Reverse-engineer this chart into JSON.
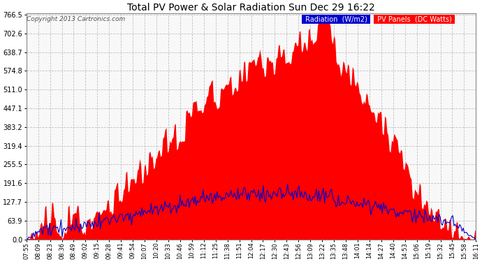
{
  "title": "Total PV Power & Solar Radiation Sun Dec 29 16:22",
  "copyright": "Copyright 2013 Cartronics.com",
  "bg_color": "#ffffff",
  "plot_bg_color": "#f8f8f8",
  "grid_color": "#bbbbbb",
  "pv_color": "#ff0000",
  "rad_color": "#0000cc",
  "yticks": [
    0.0,
    63.9,
    127.7,
    191.6,
    255.5,
    319.4,
    383.2,
    447.1,
    511.0,
    574.8,
    638.7,
    702.6,
    766.5
  ],
  "ymax": 766.5,
  "legend_rad_bg": "#0000cc",
  "legend_pv_bg": "#ff0000",
  "legend_rad_text": "Radiation  (W/m2)",
  "legend_pv_text": "PV Panels  (DC Watts)",
  "x_labels": [
    "07:55",
    "08:09",
    "08:23",
    "08:36",
    "08:49",
    "09:02",
    "09:15",
    "09:28",
    "09:41",
    "09:54",
    "10:07",
    "10:20",
    "10:33",
    "10:46",
    "10:59",
    "11:12",
    "11:25",
    "11:38",
    "11:51",
    "12:04",
    "12:17",
    "12:30",
    "12:43",
    "12:56",
    "13:09",
    "13:22",
    "13:35",
    "13:48",
    "14:01",
    "14:14",
    "14:27",
    "14:40",
    "14:53",
    "15:06",
    "15:19",
    "15:32",
    "15:45",
    "15:58",
    "16:11"
  ],
  "n_points": 390
}
